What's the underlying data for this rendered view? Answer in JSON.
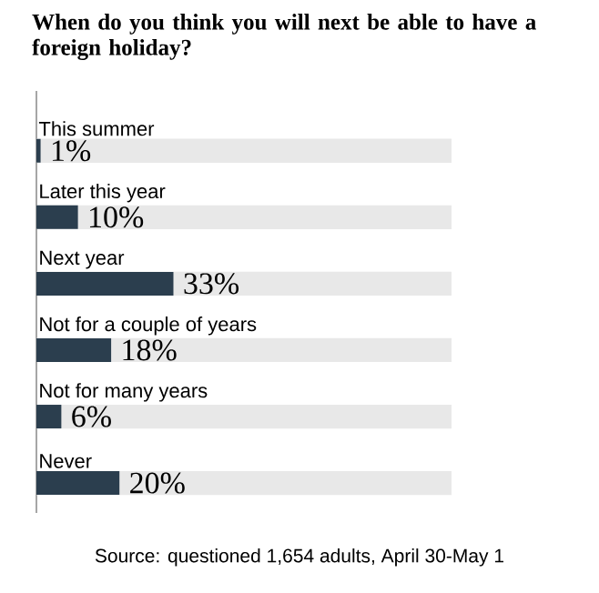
{
  "chart_data": {
    "type": "bar",
    "orientation": "horizontal",
    "title": "When do you think you will next be able to have a foreign holiday?",
    "categories": [
      "This summer",
      "Later this year",
      "Next year",
      "Not for a couple of years",
      "Not for many years",
      "Never"
    ],
    "values": [
      1,
      10,
      33,
      18,
      6,
      20
    ],
    "value_labels": [
      "1%",
      "10%",
      "33%",
      "18%",
      "6%",
      "20%"
    ],
    "color": "#2b3e4e",
    "xlim": [
      0,
      100
    ],
    "annotations": [
      "Source: questioned 1,654 adults, April 30-May 1"
    ]
  }
}
